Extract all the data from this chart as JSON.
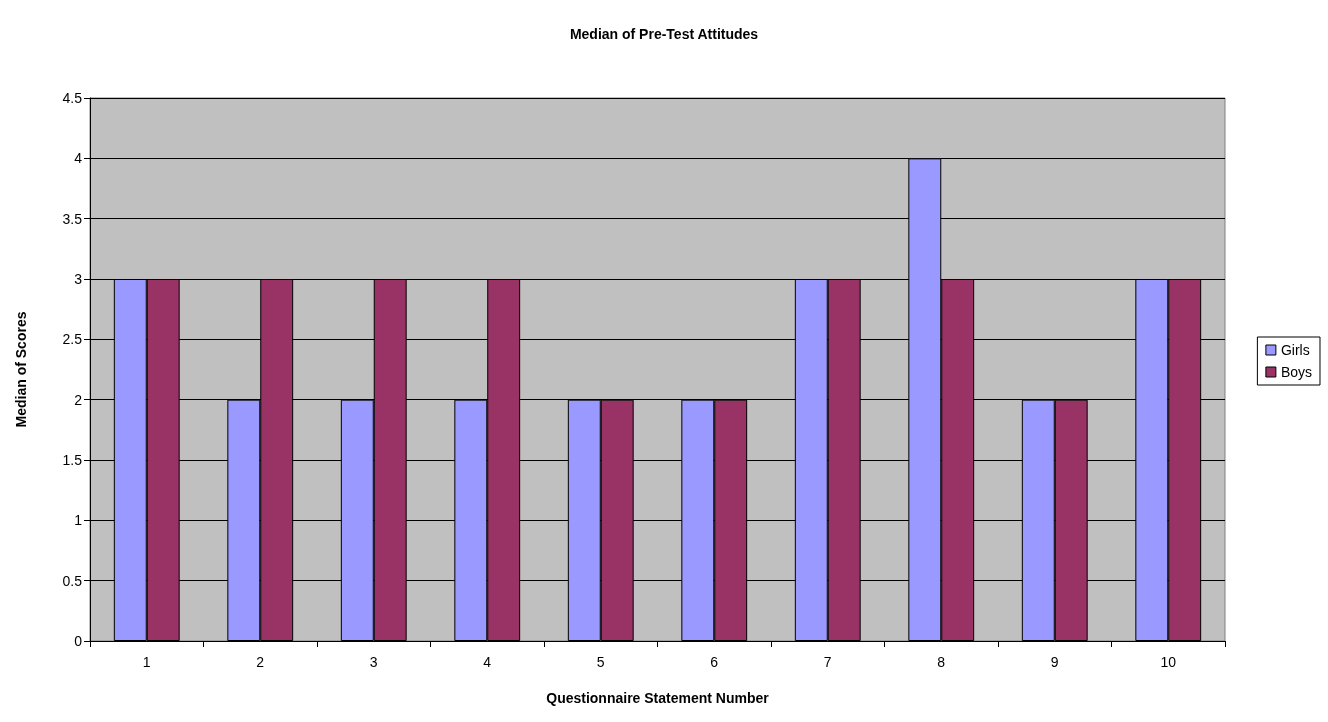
{
  "chart_data": {
    "type": "bar",
    "title": "Median of Pre-Test Attitudes",
    "xlabel": "Questionnaire Statement Number",
    "ylabel": "Median of Scores",
    "categories": [
      "1",
      "2",
      "3",
      "4",
      "5",
      "6",
      "7",
      "8",
      "9",
      "10"
    ],
    "series": [
      {
        "name": "Girls",
        "color": "#9999ff",
        "values": [
          3,
          2,
          2,
          2,
          2,
          2,
          3,
          4,
          2,
          3
        ]
      },
      {
        "name": "Boys",
        "color": "#993366",
        "values": [
          3,
          3,
          3,
          3,
          2,
          2,
          3,
          3,
          2,
          3
        ]
      }
    ],
    "ylim": [
      0,
      4.5
    ],
    "yticks": [
      0,
      0.5,
      1,
      1.5,
      2,
      2.5,
      3,
      3.5,
      4,
      4.5
    ],
    "grid": "y",
    "legend": "right"
  }
}
